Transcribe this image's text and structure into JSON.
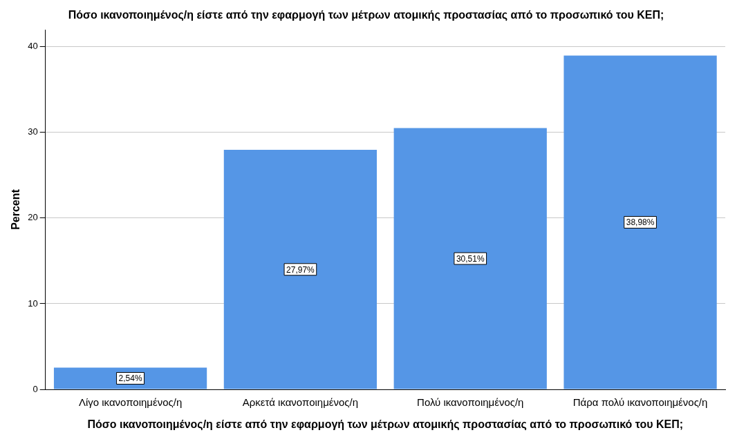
{
  "chart_data": {
    "type": "bar",
    "title": "Πόσο ικανοποιημένος/η είστε από την εφαρμογή των μέτρων ατομικής προστασίας από το προσωπικό του ΚΕΠ;",
    "xlabel": "Πόσο ικανοποιημένος/η είστε από την εφαρμογή των μέτρων ατομικής προστασίας από το προσωπικό του ΚΕΠ;",
    "ylabel": "Percent",
    "categories": [
      "Λίγο ικανοποιημένος/η",
      "Αρκετά ικανοποιημένος/η",
      "Πολύ ικανοποιημένος/η",
      "Πάρα πολύ ικανοποιημένος/η"
    ],
    "values": [
      2.54,
      27.97,
      30.51,
      38.98
    ],
    "value_labels": [
      "2,54%",
      "27,97%",
      "30,51%",
      "38,98%"
    ],
    "color": "#5596e6",
    "ylim": [
      0,
      42
    ],
    "yticks": [
      0,
      10,
      20,
      30,
      40
    ],
    "grid": "y"
  }
}
